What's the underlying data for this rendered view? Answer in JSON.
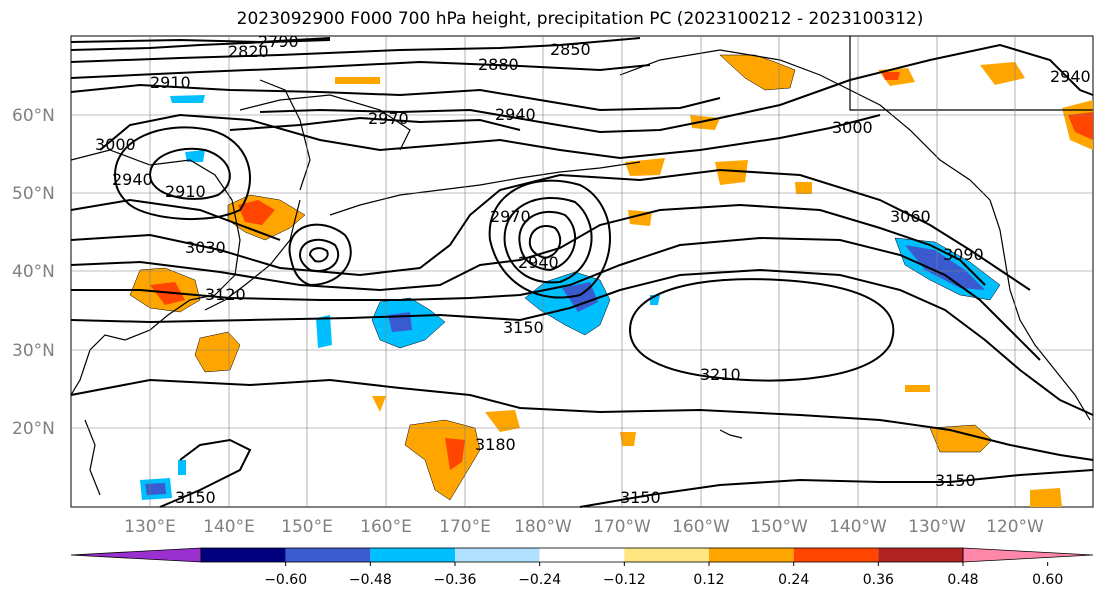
{
  "title": "2023092900 F000 700 hPa height, precipitation PC (2023100212 - 2023100312)",
  "lat_labels": [
    "60°N",
    "50°N",
    "40°N",
    "30°N",
    "20°N"
  ],
  "lon_labels": [
    "130°E",
    "140°E",
    "150°E",
    "160°E",
    "170°E",
    "180°W",
    "170°W",
    "160°W",
    "150°W",
    "140°W",
    "130°W",
    "120°W"
  ],
  "colorbar": {
    "ticks": [
      "−0.60",
      "−0.48",
      "−0.36",
      "−0.24",
      "−0.12",
      "0.12",
      "0.24",
      "0.36",
      "0.48",
      "0.60"
    ],
    "colors": [
      "#9b30d0",
      "#00007f",
      "#3a5bd0",
      "#00bfff",
      "#b0e2ff",
      "#ffffff",
      "#ffe680",
      "#ffa500",
      "#ff4500",
      "#b22222",
      "#ff88aa"
    ]
  },
  "contour_labels": [
    "2820",
    "2790",
    "2850",
    "2880",
    "2910",
    "3000",
    "2970",
    "2940",
    "3000",
    "2940",
    "2910",
    "2970",
    "3060",
    "3030",
    "2940",
    "3090",
    "3120",
    "3150",
    "3210",
    "3180",
    "3150",
    "3150",
    "3150",
    "2940"
  ],
  "colors": {
    "land": "#000000",
    "contour": "#000000",
    "grid": "#808080"
  }
}
